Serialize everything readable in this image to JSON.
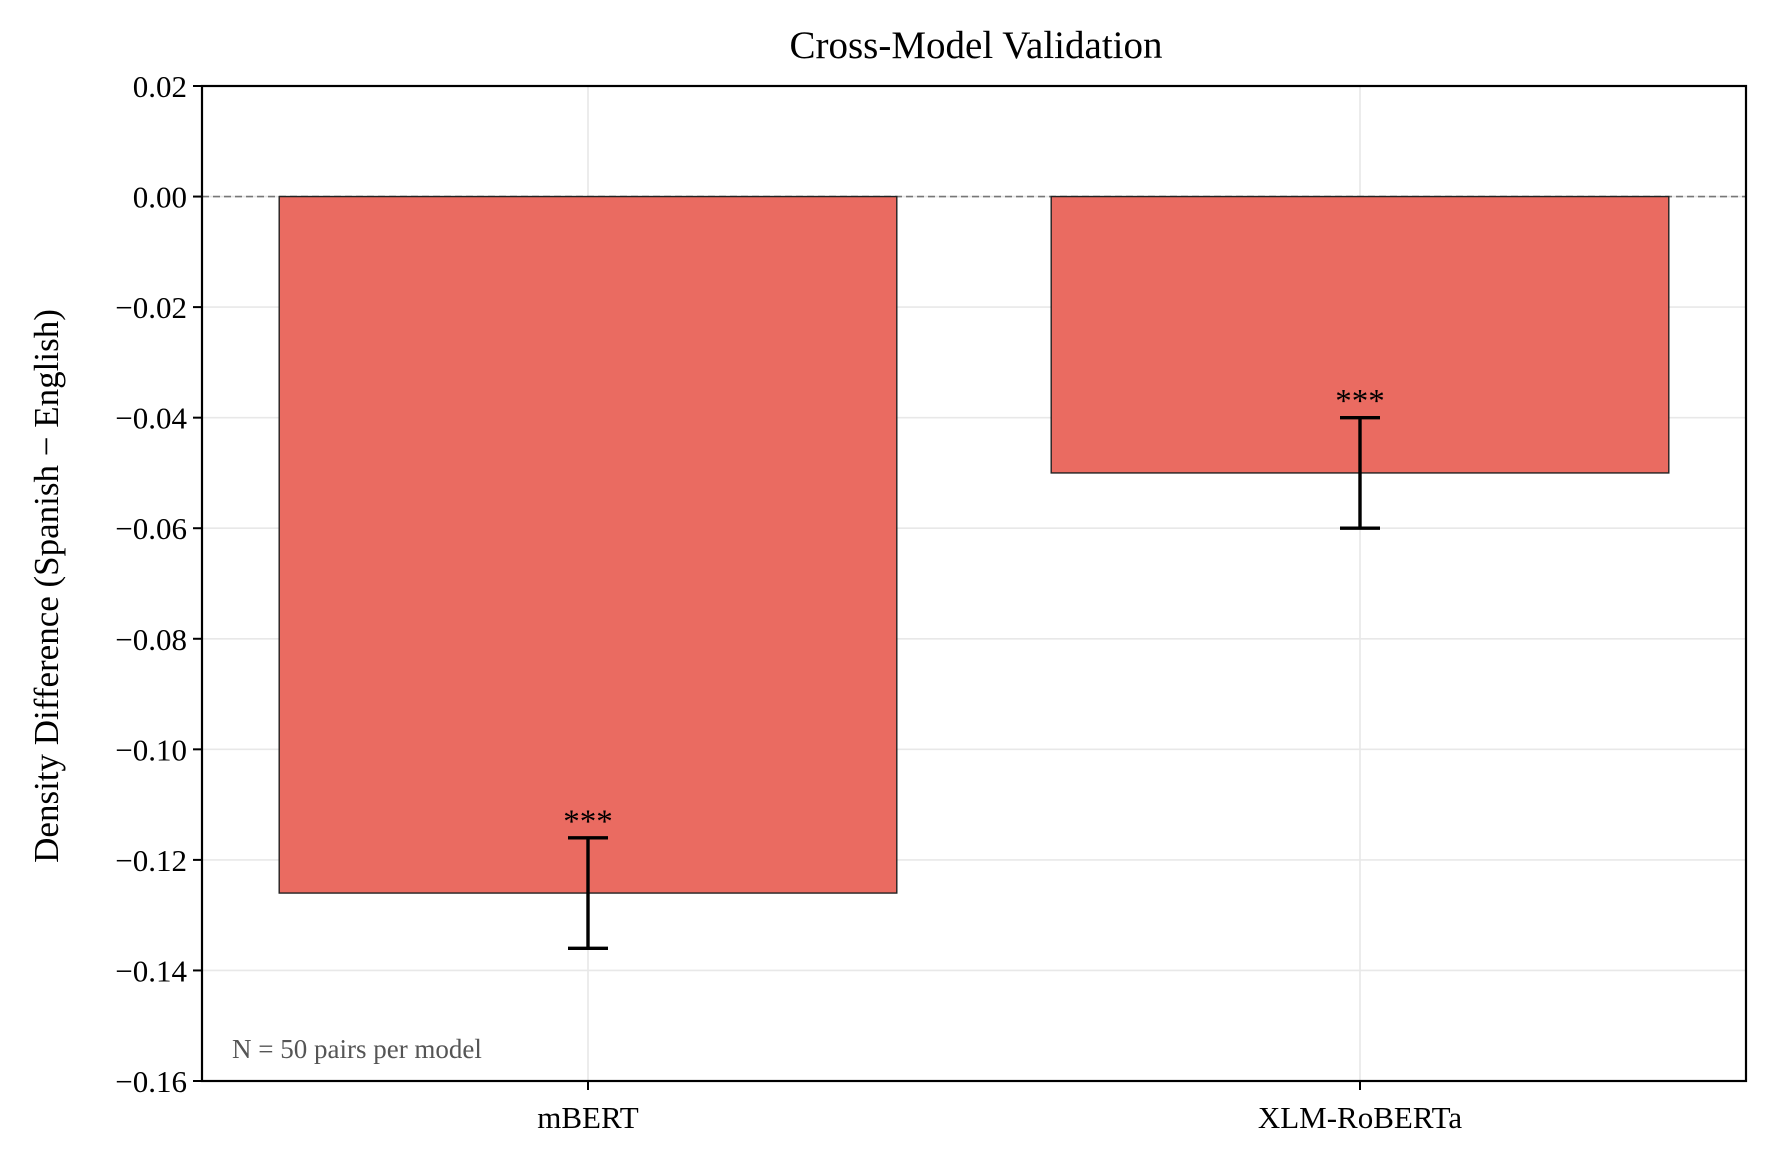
{
  "chart_data": {
    "type": "bar",
    "title": "Cross-Model Validation",
    "xlabel": "",
    "ylabel": "Density Difference (Spanish − English)",
    "categories": [
      "mBERT",
      "XLM-RoBERTa"
    ],
    "values": [
      -0.126,
      -0.05
    ],
    "error_low": [
      -0.136,
      -0.06
    ],
    "error_high": [
      -0.116,
      -0.04
    ],
    "significance": [
      "***",
      "***"
    ],
    "ylim": [
      -0.16,
      0.02
    ],
    "yticks": [
      0.02,
      0.0,
      -0.02,
      -0.04,
      -0.06,
      -0.08,
      -0.1,
      -0.12,
      -0.14,
      -0.16
    ],
    "ytick_labels": [
      "0.02",
      "0.00",
      "−0.02",
      "−0.04",
      "−0.06",
      "−0.08",
      "−0.10",
      "−0.12",
      "−0.14",
      "−0.16"
    ],
    "reference_line": 0.0,
    "grid": true,
    "bar_color": "#ea6b61",
    "annotation": "N = 50 pairs per model"
  }
}
